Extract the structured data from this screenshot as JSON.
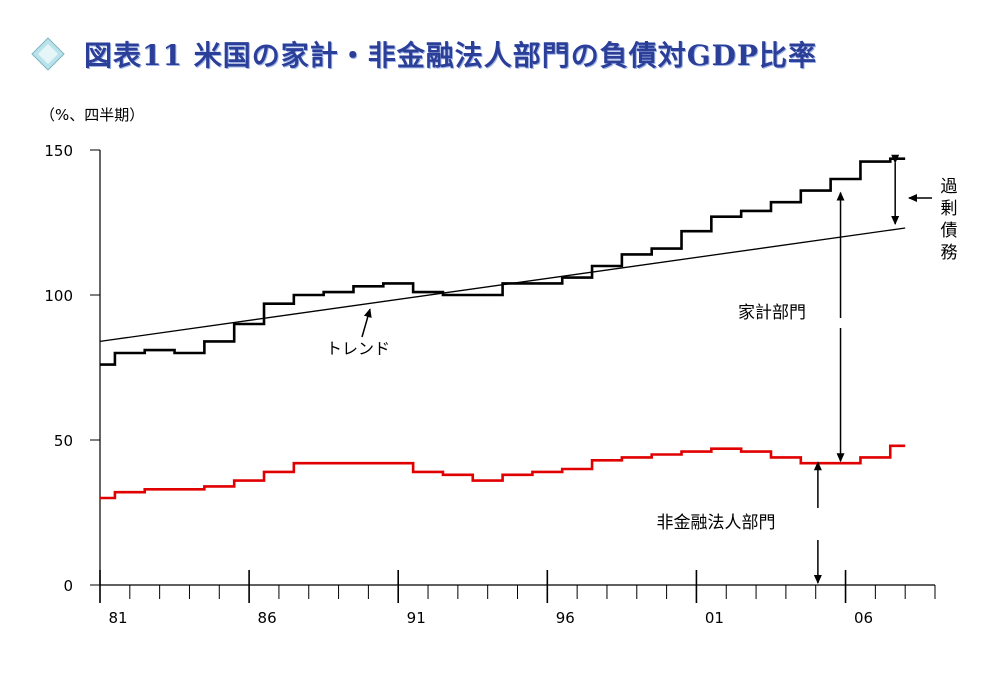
{
  "header": {
    "icon": "diamond-icon"
  },
  "chart_data": {
    "type": "line",
    "title": "図表11 米国の家計・非金融法人部門の負債対GDP比率",
    "unit_label": "（%、四半期）",
    "x": [
      1981,
      1982,
      1983,
      1984,
      1985,
      1986,
      1987,
      1988,
      1989,
      1990,
      1991,
      1992,
      1993,
      1994,
      1995,
      1996,
      1997,
      1998,
      1999,
      2000,
      2001,
      2002,
      2003,
      2004,
      2005,
      2006,
      2007,
      2008
    ],
    "xticks": [
      1981,
      1986,
      1991,
      1996,
      2001,
      2006
    ],
    "xtick_labels": [
      "81",
      "86",
      "91",
      "96",
      "01",
      "06"
    ],
    "xlim": [
      1981,
      2009
    ],
    "yticks": [
      0,
      50,
      100,
      150
    ],
    "ylim": [
      0,
      150
    ],
    "series": [
      {
        "name": "家計部門",
        "color": "#000000",
        "values": [
          76,
          80,
          81,
          80,
          84,
          90,
          97,
          100,
          101,
          103,
          104,
          101,
          100,
          100,
          104,
          104,
          106,
          110,
          114,
          116,
          122,
          127,
          129,
          132,
          136,
          140,
          146,
          147
        ]
      },
      {
        "name": "非金融法人部門",
        "color": "#e00000",
        "values": [
          30,
          32,
          33,
          33,
          34,
          36,
          39,
          42,
          42,
          42,
          42,
          39,
          38,
          36,
          38,
          39,
          40,
          43,
          44,
          45,
          46,
          47,
          46,
          44,
          42,
          42,
          44,
          48
        ]
      },
      {
        "name": "トレンド",
        "color": "#000000",
        "values": [
          84,
          85.4,
          86.9,
          88.3,
          89.8,
          91.2,
          92.7,
          94.1,
          95.6,
          97.0,
          98.5,
          99.9,
          101.4,
          102.8,
          104.3,
          105.7,
          107.2,
          108.6,
          110.1,
          111.5,
          113.0,
          114.4,
          115.9,
          117.3,
          118.8,
          120.2,
          121.7,
          123.1
        ]
      }
    ],
    "annotations": {
      "trend": "トレンド",
      "household": "家計部門",
      "corporate": "非金融法人部門",
      "excess_debt": "過剰債務"
    },
    "grid": false,
    "legend": "none"
  }
}
